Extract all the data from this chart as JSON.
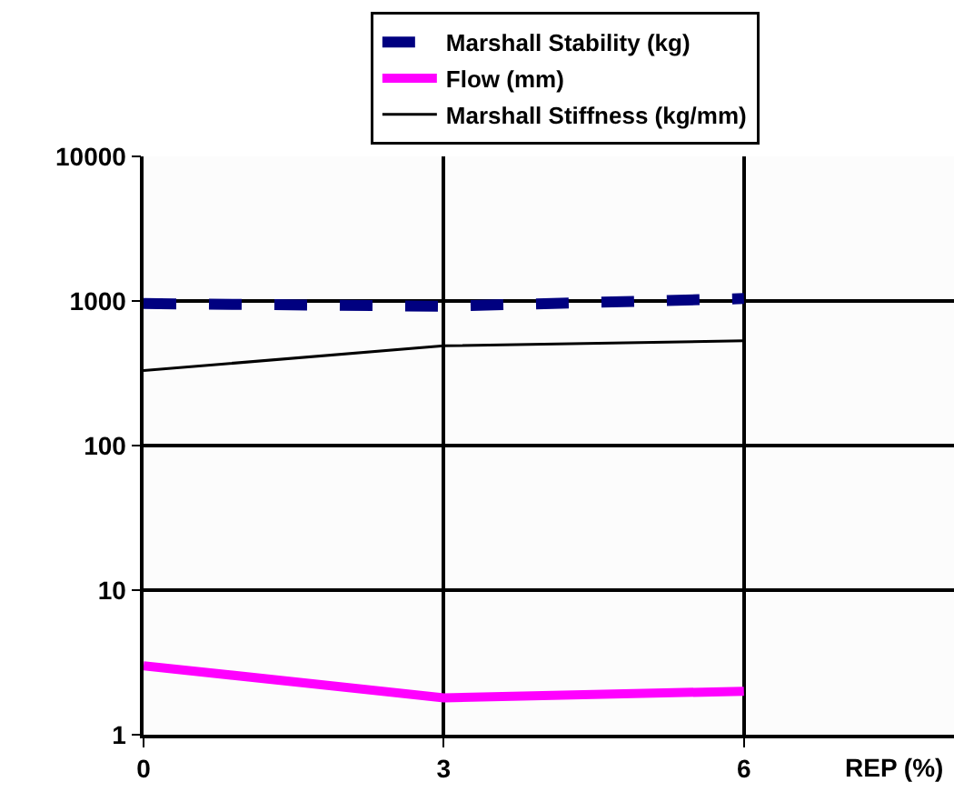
{
  "chart_data": {
    "type": "line",
    "xlabel": "REP (%)",
    "x": [
      0,
      3,
      6
    ],
    "series": [
      {
        "name": "Marshall Stability (kg)",
        "color": "#000080",
        "line_style": "dashed",
        "values": [
          960,
          920,
          1040
        ]
      },
      {
        "name": "Flow (mm)",
        "color": "#ff00ff",
        "line_style": "solid",
        "values": [
          3.0,
          1.8,
          2.0
        ]
      },
      {
        "name": "Marshall Stiffness (kg/mm)",
        "color": "#000000",
        "line_style": "solid",
        "values": [
          330,
          490,
          530
        ]
      }
    ],
    "xlim": [
      0,
      8.1
    ],
    "xticks": [
      0,
      3,
      6
    ],
    "ylim": [
      1,
      10000
    ],
    "yticks": [
      1,
      10,
      100,
      1000,
      10000
    ],
    "log": true,
    "grid": true,
    "legend": "top",
    "marker": "none"
  }
}
